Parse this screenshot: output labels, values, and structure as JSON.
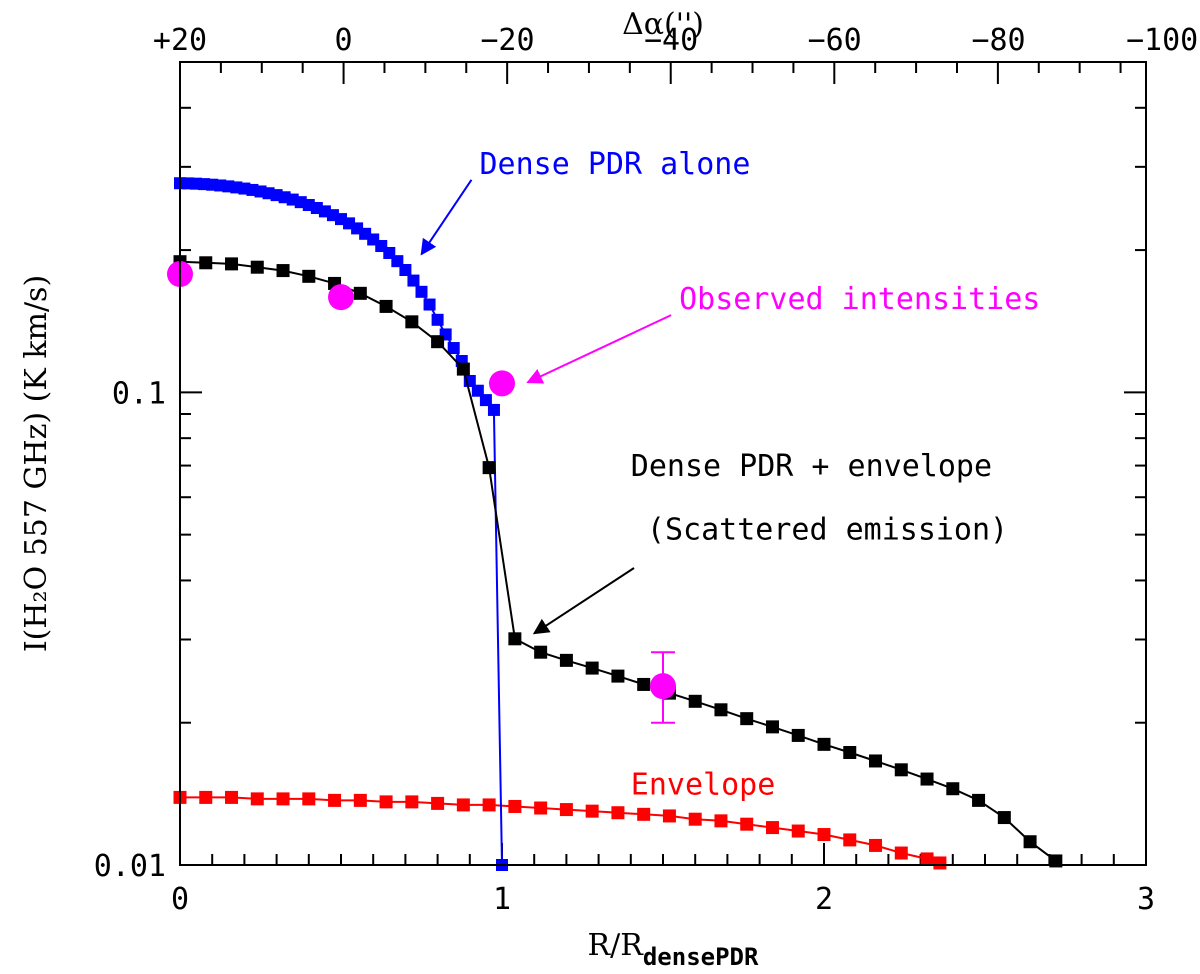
{
  "chart_data": {
    "type": "scatter",
    "title": "",
    "xlabel_main": "R/R",
    "xlabel_sub": "densePDR",
    "ylabel": "I(H₂O 557 GHz)  (K km/s)",
    "top_axis_label": "Δα('')",
    "xlim": [
      0,
      3
    ],
    "ylim": [
      0.01,
      0.5
    ],
    "yscale": "log",
    "x_ticks": [
      {
        "value": 0,
        "label": "0"
      },
      {
        "value": 1,
        "label": "1"
      },
      {
        "value": 2,
        "label": "2"
      },
      {
        "value": 3,
        "label": "3"
      }
    ],
    "y_ticks": [
      {
        "value": 0.01,
        "label": "0.01"
      },
      {
        "value": 0.1,
        "label": "0.1"
      }
    ],
    "top_ticks": [
      {
        "value": 0,
        "label": "+20"
      },
      {
        "value": 0.508,
        "label": "0"
      },
      {
        "value": 1.017,
        "label": "−20"
      },
      {
        "value": 1.525,
        "label": "−40"
      },
      {
        "value": 2.033,
        "label": "−60"
      },
      {
        "value": 2.542,
        "label": "−80"
      },
      {
        "value": 3.05,
        "label": "−100"
      }
    ],
    "series": [
      {
        "name": "Dense PDR alone",
        "color": "#0000ff",
        "marker": "square-small",
        "x": [
          0,
          0.025,
          0.05,
          0.075,
          0.1,
          0.125,
          0.15,
          0.175,
          0.2,
          0.225,
          0.25,
          0.275,
          0.3,
          0.325,
          0.35,
          0.375,
          0.4,
          0.425,
          0.45,
          0.475,
          0.5,
          0.525,
          0.55,
          0.575,
          0.6,
          0.625,
          0.65,
          0.675,
          0.7,
          0.725,
          0.75,
          0.775,
          0.8,
          0.825,
          0.85,
          0.875,
          0.9,
          0.925,
          0.95,
          0.975,
          1.0
        ],
        "y": [
          0.277,
          0.2768,
          0.2764,
          0.2758,
          0.275,
          0.274,
          0.2728,
          0.2714,
          0.2699,
          0.2681,
          0.2661,
          0.2638,
          0.2614,
          0.2587,
          0.2558,
          0.2526,
          0.2491,
          0.2455,
          0.2415,
          0.2371,
          0.2326,
          0.2278,
          0.2223,
          0.2165,
          0.2106,
          0.204,
          0.1972,
          0.1895,
          0.1815,
          0.1724,
          0.1632,
          0.1534,
          0.1424,
          0.1326,
          0.1241,
          0.1165,
          0.1057,
          0.1008,
          0.0963,
          0.0918,
          0.01
        ]
      },
      {
        "name": "Dense PDR + envelope (Scattered emission)",
        "color": "#000000",
        "marker": "square",
        "x": [
          0,
          0.08,
          0.16,
          0.24,
          0.32,
          0.4,
          0.48,
          0.56,
          0.64,
          0.72,
          0.8,
          0.88,
          0.96,
          1.04,
          1.12,
          1.2,
          1.28,
          1.36,
          1.44,
          1.52,
          1.6,
          1.68,
          1.76,
          1.84,
          1.92,
          2.0,
          2.08,
          2.16,
          2.24,
          2.32,
          2.4,
          2.48,
          2.56,
          2.64,
          2.72
        ],
        "y": [
          0.189,
          0.188,
          0.187,
          0.184,
          0.181,
          0.176,
          0.17,
          0.162,
          0.152,
          0.141,
          0.128,
          0.112,
          0.0693,
          0.0301,
          0.0282,
          0.0271,
          0.0261,
          0.0251,
          0.0241,
          0.0231,
          0.0222,
          0.0213,
          0.0204,
          0.0196,
          0.0188,
          0.018,
          0.0173,
          0.0166,
          0.0159,
          0.0152,
          0.0145,
          0.0137,
          0.0126,
          0.0112,
          0.0102
        ]
      },
      {
        "name": "Envelope",
        "color": "#ff0000",
        "marker": "square",
        "x": [
          0,
          0.08,
          0.16,
          0.24,
          0.32,
          0.4,
          0.48,
          0.56,
          0.64,
          0.72,
          0.8,
          0.88,
          0.96,
          1.04,
          1.12,
          1.2,
          1.28,
          1.36,
          1.44,
          1.52,
          1.6,
          1.68,
          1.76,
          1.84,
          1.92,
          2.0,
          2.08,
          2.16,
          2.24,
          2.32,
          2.36
        ],
        "y": [
          0.0139,
          0.0139,
          0.0139,
          0.0138,
          0.0138,
          0.0138,
          0.0137,
          0.0137,
          0.0136,
          0.0136,
          0.0135,
          0.0134,
          0.0134,
          0.0133,
          0.0132,
          0.0131,
          0.013,
          0.0129,
          0.0128,
          0.0127,
          0.0125,
          0.0124,
          0.0122,
          0.012,
          0.0118,
          0.0116,
          0.0113,
          0.011,
          0.0106,
          0.0103,
          0.0101
        ]
      },
      {
        "name": "Observed intensities",
        "color": "#ff00ff",
        "marker": "circle",
        "x": [
          0,
          0.5,
          1.0,
          1.5
        ],
        "y": [
          0.178,
          0.159,
          0.1045,
          0.0239
        ],
        "yerr_low": [
          null,
          null,
          null,
          0.02
        ],
        "yerr_high": [
          null,
          null,
          null,
          0.0282
        ]
      }
    ],
    "annotations": [
      {
        "text": "Dense PDR alone",
        "color": "#0000ff",
        "text_at": [
          0.93,
          0.29
        ],
        "arrow_to": [
          0.75,
          0.196
        ]
      },
      {
        "text": "Observed intensities",
        "color": "#ff00ff",
        "text_at": [
          1.55,
          0.15
        ],
        "arrow_to": [
          1.08,
          0.105
        ]
      },
      {
        "text": "Dense PDR + envelope",
        "color": "#000000",
        "text_at": [
          1.4,
          0.0665
        ],
        "arrow_to": null
      },
      {
        "text": "(Scattered emission)",
        "color": "#000000",
        "text_at": [
          1.45,
          0.0488
        ],
        "arrow_to": [
          1.1,
          0.0309
        ],
        "arrow_from": [
          1.41,
          0.0425
        ]
      },
      {
        "text": "Envelope",
        "color": "#ff0000",
        "text_at": [
          1.4,
          0.0141
        ],
        "arrow_to": null
      }
    ]
  }
}
